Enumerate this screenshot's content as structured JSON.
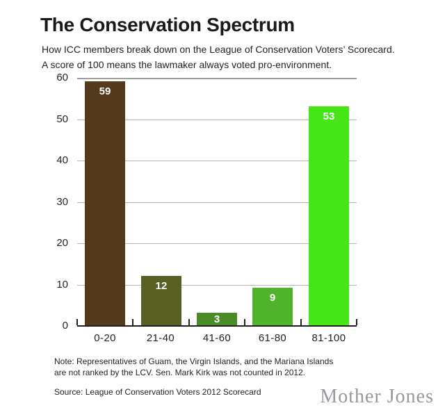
{
  "header": {
    "title": "The Conservation Spectrum",
    "subtitle_line1": "How ICC members break down on the League of Conservation Voters’ Scorecard.",
    "subtitle_line2": "A score of 100 means the lawmaker always voted pro-environment."
  },
  "chart_data": {
    "type": "bar",
    "title": "The Conservation Spectrum",
    "categories": [
      "0-20",
      "21-40",
      "41-60",
      "61-80",
      "81-100"
    ],
    "values": [
      59,
      12,
      3,
      9,
      53
    ],
    "bar_colors": [
      "#533a1d",
      "#575f22",
      "#4a8c26",
      "#4fb32b",
      "#45e517"
    ],
    "value_label_color": "#ffffff",
    "xlabel": "",
    "ylabel": "",
    "ylim": [
      0,
      60
    ],
    "yticks": [
      0,
      10,
      20,
      30,
      40,
      50,
      60
    ],
    "grid": "horizontal",
    "gridline_color": "#b5b5b5",
    "axis_color": "#231f20",
    "legend": "none"
  },
  "footer": {
    "note_line1": "Note: Representatives of Guam, the Virgin Islands, and the Mariana Islands",
    "note_line2": "are not ranked by the LCV. Sen. Mark Kirk was not counted in 2012.",
    "source": "Source: League of Conservation Voters 2012 Scorecard",
    "brand": "Mother Jones"
  }
}
